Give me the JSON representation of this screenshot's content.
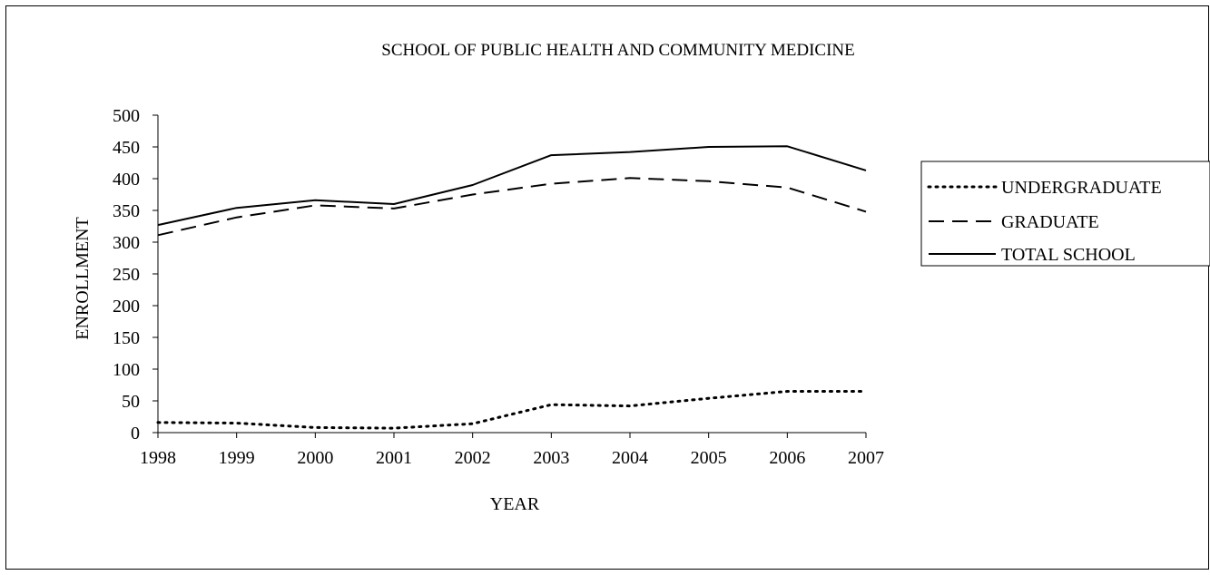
{
  "chart_data": {
    "type": "line",
    "title": "SCHOOL OF PUBLIC HEALTH AND COMMUNITY MEDICINE",
    "xlabel": "YEAR",
    "ylabel": "ENROLLMENT",
    "ylim": [
      0,
      500
    ],
    "yticks": [
      "0",
      "50",
      "100",
      "150",
      "200",
      "250",
      "300",
      "350",
      "400",
      "450",
      "500"
    ],
    "categories": [
      "1998",
      "1999",
      "2000",
      "2001",
      "2002",
      "2003",
      "2004",
      "2005",
      "2006",
      "2007"
    ],
    "grid": false,
    "legend_position": "right",
    "series": [
      {
        "name": "UNDERGRADUATE",
        "style": "dotted",
        "color": "#000000",
        "values": [
          16,
          15,
          8,
          7,
          14,
          44,
          42,
          54,
          65,
          65
        ]
      },
      {
        "name": "GRADUATE",
        "style": "dashed",
        "color": "#000000",
        "values": [
          311,
          339,
          358,
          353,
          375,
          392,
          401,
          396,
          386,
          348
        ]
      },
      {
        "name": "TOTAL SCHOOL",
        "style": "solid",
        "color": "#000000",
        "values": [
          327,
          354,
          366,
          360,
          390,
          437,
          442,
          450,
          451,
          413
        ]
      }
    ]
  }
}
